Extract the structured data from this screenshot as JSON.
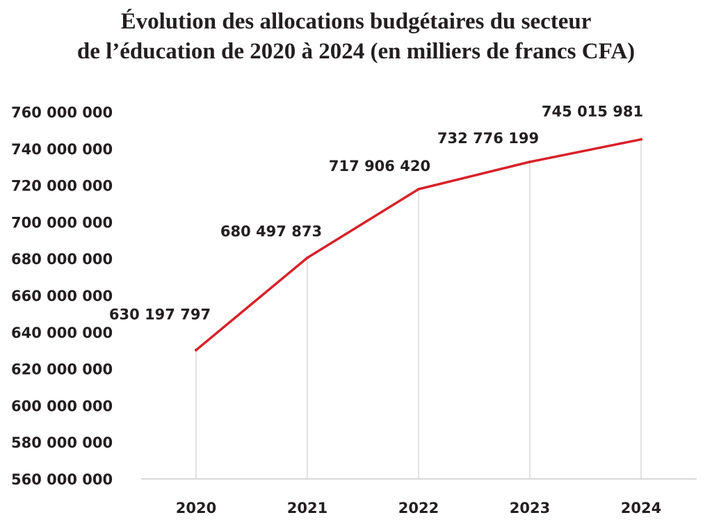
{
  "chart_data": {
    "type": "line",
    "title_line1": "Évolution des allocations budgétaires du secteur",
    "title_line2": "de l’éducation de 2020 à 2024 (en milliers de francs CFA)",
    "categories": [
      "2020",
      "2021",
      "2022",
      "2023",
      "2024"
    ],
    "series": [
      {
        "values": [
          630197797,
          680497873,
          717906420,
          732776199,
          745015981
        ],
        "labels": [
          "630 197 797",
          "680 497 873",
          "717 906 420",
          "732 776 199",
          "745 015 981"
        ],
        "color": "#d7222a"
      }
    ],
    "ylim": [
      560000000,
      760000000
    ],
    "yticks": [
      560000000,
      580000000,
      600000000,
      620000000,
      640000000,
      660000000,
      680000000,
      700000000,
      720000000,
      740000000,
      760000000
    ],
    "ytick_labels": [
      "560 000 000",
      "580 000 000",
      "600 000 000",
      "620 000 000",
      "640 000 000",
      "660 000 000",
      "680 000 000",
      "700 000 000",
      "720 000 000",
      "740 000 000",
      "760 000 000"
    ],
    "grid": "vertical",
    "legend": "none",
    "grid_color": "#d9d9d9",
    "axis_color": "#d9d9d9"
  }
}
